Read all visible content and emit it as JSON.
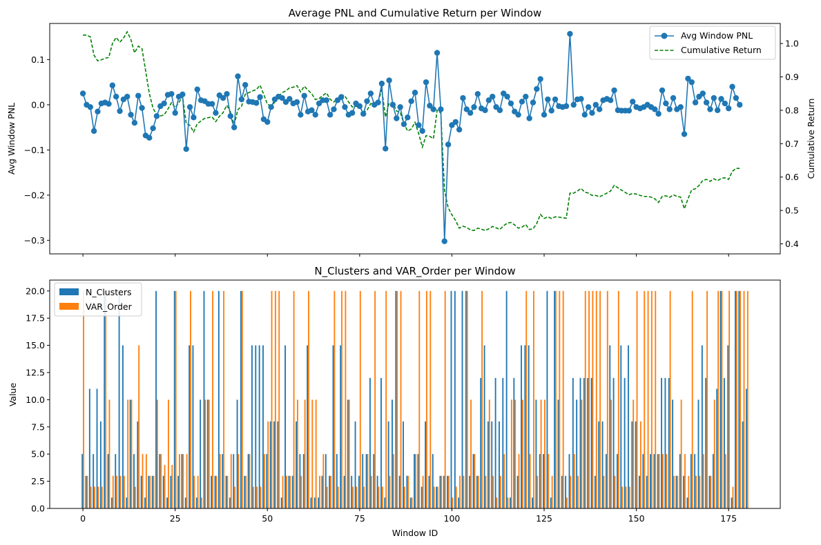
{
  "chart_data": [
    {
      "type": "line",
      "title": "Average PNL and Cumulative Return per Window",
      "ylabel": "Avg Window PNL",
      "y2label": "Cumulative Return",
      "xlim": [
        -9,
        189
      ],
      "ylim": [
        -0.33,
        0.18
      ],
      "y2lim": [
        0.37,
        1.06
      ],
      "yticks": [
        -0.3,
        -0.2,
        -0.1,
        0.0,
        0.1
      ],
      "y2ticks": [
        0.4,
        0.5,
        0.6,
        0.7,
        0.8,
        0.9,
        1.0
      ],
      "legend_position": "upper right",
      "series": [
        {
          "name": "Avg Window PNL",
          "axis": "left",
          "color": "#1f77b4",
          "style": "solid-marker",
          "values": [
            0.025,
            0.0,
            -0.005,
            -0.058,
            -0.015,
            0.003,
            0.005,
            0.002,
            0.043,
            0.018,
            -0.014,
            0.012,
            0.018,
            -0.022,
            -0.04,
            0.02,
            -0.007,
            -0.068,
            -0.073,
            -0.052,
            -0.025,
            -0.003,
            0.003,
            0.022,
            0.024,
            -0.018,
            0.018,
            0.023,
            -0.098,
            -0.005,
            -0.028,
            0.034,
            0.01,
            0.008,
            0.002,
            0.002,
            -0.018,
            0.021,
            0.015,
            0.024,
            -0.025,
            -0.05,
            0.063,
            0.012,
            0.044,
            0.007,
            0.006,
            0.004,
            0.017,
            -0.032,
            -0.038,
            -0.005,
            0.012,
            0.018,
            0.015,
            0.006,
            0.013,
            0.003,
            0.006,
            -0.022,
            0.02,
            -0.015,
            -0.012,
            -0.022,
            0.003,
            0.01,
            0.01,
            -0.022,
            -0.01,
            0.01,
            0.017,
            -0.005,
            -0.022,
            -0.018,
            0.003,
            -0.003,
            -0.02,
            0.008,
            0.025,
            0.0,
            0.005,
            0.047,
            -0.097,
            0.054,
            0.0,
            -0.03,
            -0.005,
            -0.043,
            -0.028,
            0.008,
            0.027,
            -0.045,
            -0.058,
            0.05,
            -0.002,
            -0.01,
            0.115,
            -0.01,
            -0.302,
            -0.088,
            -0.045,
            -0.038,
            -0.055,
            0.015,
            -0.01,
            -0.018,
            -0.005,
            0.024,
            -0.008,
            -0.012,
            0.01,
            0.018,
            -0.005,
            -0.012,
            0.025,
            0.018,
            0.003,
            -0.015,
            -0.022,
            0.007,
            0.018,
            -0.03,
            0.005,
            0.035,
            0.057,
            -0.022,
            0.012,
            -0.013,
            0.012,
            -0.003,
            -0.005,
            -0.003,
            0.157,
            0.0,
            0.012,
            0.013,
            -0.022,
            -0.005,
            -0.018,
            0.0,
            -0.01,
            0.01,
            0.013,
            0.01,
            0.032,
            -0.012,
            -0.013,
            -0.013,
            -0.013,
            0.007,
            -0.005,
            -0.008,
            -0.005,
            0.0,
            -0.005,
            -0.01,
            -0.02,
            0.032,
            0.003,
            -0.01,
            0.015,
            -0.01,
            -0.005,
            -0.065,
            0.058,
            0.05,
            0.005,
            0.018,
            0.025,
            0.005,
            -0.01,
            0.015,
            -0.012,
            0.013,
            0.003,
            -0.008,
            0.04,
            0.015,
            0.0
          ]
        },
        {
          "name": "Cumulative Return",
          "axis": "right",
          "color": "#008000",
          "style": "dashed",
          "values": [
            1.025,
            1.025,
            1.02,
            0.965,
            0.948,
            0.951,
            0.956,
            0.958,
            1.0,
            1.018,
            1.004,
            1.016,
            1.035,
            1.012,
            0.972,
            0.992,
            0.985,
            0.918,
            0.85,
            0.806,
            0.786,
            0.783,
            0.786,
            0.803,
            0.823,
            0.808,
            0.823,
            0.842,
            0.76,
            0.755,
            0.735,
            0.76,
            0.768,
            0.776,
            0.778,
            0.78,
            0.766,
            0.782,
            0.793,
            0.815,
            0.795,
            0.756,
            0.802,
            0.812,
            0.848,
            0.853,
            0.858,
            0.862,
            0.875,
            0.848,
            0.818,
            0.814,
            0.824,
            0.84,
            0.853,
            0.858,
            0.867,
            0.869,
            0.874,
            0.855,
            0.872,
            0.86,
            0.85,
            0.832,
            0.835,
            0.844,
            0.852,
            0.833,
            0.825,
            0.833,
            0.847,
            0.843,
            0.825,
            0.81,
            0.812,
            0.81,
            0.794,
            0.8,
            0.82,
            0.82,
            0.824,
            0.863,
            0.78,
            0.822,
            0.822,
            0.798,
            0.794,
            0.76,
            0.738,
            0.744,
            0.764,
            0.73,
            0.69,
            0.724,
            0.722,
            0.715,
            0.8,
            0.792,
            0.56,
            0.508,
            0.487,
            0.47,
            0.447,
            0.453,
            0.449,
            0.442,
            0.44,
            0.447,
            0.444,
            0.44,
            0.445,
            0.452,
            0.448,
            0.443,
            0.454,
            0.462,
            0.464,
            0.457,
            0.447,
            0.45,
            0.458,
            0.443,
            0.445,
            0.461,
            0.488,
            0.476,
            0.481,
            0.476,
            0.481,
            0.48,
            0.478,
            0.477,
            0.552,
            0.552,
            0.558,
            0.566,
            0.555,
            0.552,
            0.545,
            0.545,
            0.541,
            0.546,
            0.552,
            0.558,
            0.575,
            0.568,
            0.561,
            0.554,
            0.547,
            0.551,
            0.549,
            0.545,
            0.542,
            0.542,
            0.54,
            0.535,
            0.524,
            0.542,
            0.544,
            0.539,
            0.547,
            0.542,
            0.54,
            0.505,
            0.535,
            0.562,
            0.565,
            0.575,
            0.59,
            0.593,
            0.587,
            0.595,
            0.589,
            0.596,
            0.598,
            0.593,
            0.617,
            0.626,
            0.626
          ]
        }
      ]
    },
    {
      "type": "bar",
      "title": "N_Clusters and VAR_Order per Window",
      "xlabel": "Window ID",
      "ylabel": "Value",
      "xlim": [
        -9,
        189
      ],
      "ylim": [
        0,
        21
      ],
      "xticks": [
        0,
        25,
        50,
        75,
        100,
        125,
        150,
        175
      ],
      "yticks": [
        0.0,
        2.5,
        5.0,
        7.5,
        10.0,
        12.5,
        15.0,
        17.5,
        20.0
      ],
      "legend_position": "upper left",
      "series": [
        {
          "name": "N_Clusters",
          "color": "#1f77b4",
          "values": [
            5,
            3,
            11,
            5,
            11,
            8,
            20,
            5,
            1,
            5,
            20,
            15,
            1,
            10,
            5,
            8,
            3,
            1,
            3,
            3,
            20,
            5,
            3,
            1,
            3,
            20,
            3,
            5,
            1,
            15,
            15,
            1,
            10,
            20,
            10,
            3,
            3,
            20,
            5,
            3,
            1,
            5,
            10,
            20,
            3,
            5,
            15,
            15,
            15,
            15,
            5,
            8,
            8,
            8,
            1,
            15,
            3,
            3,
            8,
            5,
            5,
            15,
            1,
            1,
            1,
            3,
            5,
            3,
            15,
            5,
            15,
            3,
            10,
            3,
            8,
            3,
            5,
            5,
            12,
            5,
            3,
            12,
            1,
            8,
            10,
            20,
            3,
            8,
            3,
            1,
            5,
            5,
            2,
            8,
            3,
            5,
            2,
            3,
            3,
            3,
            20,
            20,
            1,
            20,
            20,
            3,
            5,
            3,
            12,
            15,
            8,
            8,
            12,
            8,
            12,
            20,
            1,
            12,
            3,
            15,
            15,
            15,
            1,
            10,
            5,
            5,
            20,
            1,
            20,
            10,
            3,
            3,
            5,
            12,
            10,
            12,
            12,
            12,
            12,
            3,
            8,
            8,
            5,
            15,
            12,
            5,
            15,
            12,
            15,
            8,
            8,
            3,
            5,
            3,
            5,
            5,
            5,
            12,
            12,
            12,
            10,
            3,
            5,
            3,
            1,
            5,
            5,
            10,
            15,
            12,
            3,
            5,
            11,
            20,
            12,
            15,
            1,
            20,
            20,
            8,
            11
          ]
        },
        {
          "name": "VAR_Order",
          "color": "#ff7f0e",
          "values": [
            20,
            3,
            2,
            2,
            2,
            2,
            20,
            10,
            3,
            3,
            3,
            3,
            10,
            10,
            2,
            15,
            5,
            5,
            3,
            3,
            10,
            5,
            4,
            10,
            4,
            20,
            5,
            5,
            5,
            20,
            3,
            3,
            1,
            10,
            10,
            20,
            3,
            5,
            20,
            3,
            5,
            2,
            5,
            20,
            3,
            5,
            2,
            2,
            2,
            5,
            8,
            20,
            20,
            20,
            3,
            3,
            3,
            20,
            10,
            3,
            10,
            20,
            10,
            10,
            3,
            5,
            2,
            3,
            20,
            2,
            20,
            20,
            10,
            2,
            2,
            20,
            2,
            5,
            3,
            20,
            2,
            2,
            20,
            3,
            5,
            20,
            20,
            2,
            3,
            1,
            5,
            20,
            3,
            20,
            20,
            2,
            2,
            3,
            20,
            3,
            1,
            2,
            3,
            3,
            20,
            10,
            5,
            3,
            20,
            3,
            10,
            3,
            1,
            3,
            5,
            1,
            10,
            10,
            5,
            10,
            20,
            5,
            20,
            3,
            10,
            10,
            5,
            3,
            20,
            20,
            20,
            1,
            3,
            5,
            3,
            10,
            20,
            20,
            20,
            20,
            20,
            3,
            20,
            10,
            3,
            20,
            2,
            2,
            2,
            10,
            20,
            8,
            20,
            20,
            20,
            20,
            5,
            5,
            5,
            20,
            3,
            3,
            10,
            5,
            3,
            20,
            3,
            3,
            5,
            20,
            3,
            10,
            20,
            20,
            5,
            20,
            2,
            20,
            20,
            20,
            20
          ]
        }
      ]
    }
  ]
}
